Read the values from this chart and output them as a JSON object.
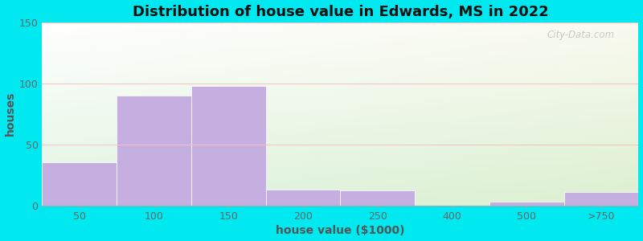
{
  "title": "Distribution of house value in Edwards, MS in 2022",
  "xlabel": "house value ($1000)",
  "ylabel": "houses",
  "bar_labels": [
    "50",
    "100",
    "150",
    "200",
    "250",
    "400",
    "500",
    ">750"
  ],
  "bar_values": [
    35,
    90,
    98,
    13,
    12,
    0,
    3,
    11
  ],
  "bar_color": "#c5aee0",
  "bar_edge_color": "#c5aee0",
  "ylim": [
    0,
    150
  ],
  "yticks": [
    0,
    50,
    100,
    150
  ],
  "background_outer": "#00e8f0",
  "title_fontsize": 13,
  "axis_label_fontsize": 10,
  "tick_fontsize": 9,
  "watermark": "City-Data.com"
}
